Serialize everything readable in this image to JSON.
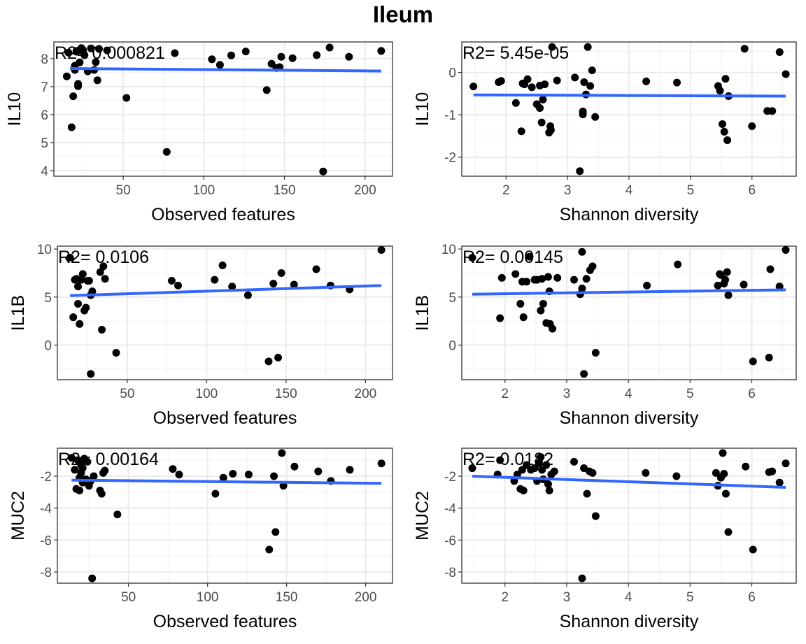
{
  "title": "Ileum",
  "chart_data": [
    {
      "type": "scatter",
      "id": "il10-observed",
      "xlabel": "Observed features",
      "ylabel": "IL10",
      "annotation": "R2= 0.000821",
      "xlim": [
        7,
        217
      ],
      "ylim": [
        3.8,
        8.6
      ],
      "xticks": [
        50,
        100,
        150,
        200
      ],
      "yticks": [
        4,
        5,
        6,
        7,
        8
      ],
      "x": [
        15,
        16,
        18,
        19,
        20,
        20,
        21,
        21,
        22,
        22,
        23,
        24,
        25,
        25,
        26,
        28,
        30,
        32,
        33,
        34,
        35,
        40,
        52,
        77,
        82,
        105,
        110,
        117,
        126,
        139,
        142,
        145,
        147,
        148,
        155,
        170,
        174,
        178,
        190,
        210
      ],
      "y": [
        7.37,
        8.22,
        5.55,
        6.66,
        7.6,
        7.75,
        8.25,
        8.28,
        7.02,
        7.1,
        7.87,
        8.38,
        8.32,
        8.26,
        8.13,
        7.55,
        8.37,
        7.6,
        7.88,
        7.23,
        8.35,
        8.3,
        6.6,
        4.67,
        8.2,
        7.98,
        7.78,
        8.12,
        8.26,
        6.88,
        7.82,
        7.67,
        7.7,
        8.07,
        8.02,
        8.13,
        3.97,
        8.4,
        8.07,
        8.28
      ],
      "fit": {
        "x": [
          17,
          210
        ],
        "y": [
          7.65,
          7.56
        ]
      }
    },
    {
      "type": "scatter",
      "id": "il10-shannon",
      "xlabel": "Shannon diversity",
      "ylabel": "IL10",
      "annotation": "R2= 5.45e-05",
      "xlim": [
        1.28,
        6.72
      ],
      "ylim": [
        -2.45,
        0.72
      ],
      "xticks": [
        2,
        3,
        4,
        5,
        6
      ],
      "yticks": [
        -2,
        -1,
        0
      ],
      "x": [
        1.47,
        1.88,
        1.92,
        2.16,
        2.25,
        2.27,
        2.3,
        2.35,
        2.42,
        2.5,
        2.55,
        2.58,
        2.6,
        2.63,
        2.7,
        2.72,
        2.73,
        2.75,
        2.83,
        3.12,
        3.2,
        3.25,
        3.27,
        3.3,
        3.33,
        3.37,
        3.4,
        3.45,
        4.28,
        4.78,
        5.45,
        5.48,
        5.52,
        5.55,
        5.57,
        5.6,
        5.62,
        6.0,
        6.25,
        6.33,
        6.45,
        6.55,
        3.25,
        2.55,
        5.88
      ],
      "y": [
        -0.33,
        -0.23,
        -0.2,
        -0.72,
        -1.39,
        -0.26,
        -0.28,
        -0.16,
        -0.35,
        -0.75,
        -0.31,
        -1.18,
        -0.64,
        -0.28,
        -1.42,
        -1.27,
        -1.36,
        0.6,
        -0.19,
        -0.12,
        -2.33,
        -0.99,
        -0.23,
        -0.52,
        0.6,
        -0.32,
        0.05,
        -1.05,
        -0.21,
        -0.24,
        -0.32,
        -0.43,
        -1.22,
        -1.4,
        -0.15,
        -1.6,
        -0.56,
        -1.27,
        -0.91,
        -0.91,
        0.48,
        -0.04,
        -0.92,
        -0.84,
        0.56
      ],
      "fit": {
        "x": [
          1.47,
          6.55
        ],
        "y": [
          -0.53,
          -0.56
        ]
      }
    },
    {
      "type": "scatter",
      "id": "il1b-observed",
      "xlabel": "Observed features",
      "ylabel": "IL1B",
      "annotation": "R2= 0.0106",
      "xlim": [
        6,
        217
      ],
      "ylim": [
        -3.6,
        10.3
      ],
      "xticks": [
        50,
        100,
        150,
        200
      ],
      "yticks": [
        0,
        5,
        10
      ],
      "x": [
        14,
        16,
        17,
        18,
        19,
        19,
        20,
        21,
        22,
        23,
        24,
        25,
        26,
        27,
        28,
        33,
        34,
        35,
        36,
        43,
        78,
        82,
        105,
        110,
        116,
        126,
        139,
        142,
        145,
        147,
        155,
        169,
        178,
        190,
        210,
        27
      ],
      "y": [
        9.1,
        2.9,
        6.8,
        6.9,
        4.3,
        6.1,
        2.2,
        6.8,
        7.4,
        3.6,
        3.9,
        6.7,
        6.7,
        5.2,
        5.6,
        7.6,
        1.6,
        8.2,
        6.9,
        -0.8,
        6.7,
        6.2,
        6.8,
        8.3,
        6.1,
        5.2,
        -1.7,
        6.4,
        -1.3,
        7.5,
        6.3,
        7.9,
        6.2,
        5.8,
        9.9,
        -3.0
      ],
      "fit": {
        "x": [
          14,
          210
        ],
        "y": [
          5.15,
          6.2
        ]
      }
    },
    {
      "type": "scatter",
      "id": "il1b-shannon",
      "xlabel": "Shannon diversity",
      "ylabel": "IL1B",
      "annotation": "R2= 0.00145",
      "xlim": [
        1.3,
        6.72
      ],
      "ylim": [
        -3.6,
        10.3
      ],
      "xticks": [
        2,
        3,
        4,
        5,
        6
      ],
      "yticks": [
        0,
        5,
        10
      ],
      "x": [
        1.47,
        1.92,
        1.95,
        2.17,
        2.25,
        2.28,
        2.3,
        2.35,
        2.4,
        2.48,
        2.52,
        2.58,
        2.6,
        2.62,
        2.67,
        2.7,
        2.72,
        2.73,
        2.77,
        2.85,
        3.12,
        3.22,
        3.25,
        3.28,
        3.32,
        3.38,
        3.42,
        3.47,
        4.3,
        4.8,
        5.45,
        5.48,
        5.5,
        5.55,
        5.57,
        5.6,
        5.62,
        5.87,
        6.02,
        6.28,
        6.3,
        6.45,
        6.55,
        3.25
      ],
      "y": [
        9.1,
        2.8,
        7.0,
        7.4,
        4.3,
        6.6,
        2.9,
        6.6,
        9.2,
        6.8,
        6.8,
        3.6,
        6.9,
        4.3,
        2.3,
        7.1,
        5.6,
        2.2,
        1.7,
        7.0,
        6.8,
        5.3,
        9.7,
        -3.0,
        6.9,
        7.8,
        8.2,
        -0.8,
        6.2,
        8.4,
        6.2,
        7.4,
        7.3,
        6.4,
        6.8,
        7.6,
        5.2,
        6.3,
        -1.7,
        -1.3,
        7.9,
        6.1,
        9.9,
        5.9
      ],
      "fit": {
        "x": [
          1.47,
          6.55
        ],
        "y": [
          5.3,
          5.75
        ]
      }
    },
    {
      "type": "scatter",
      "id": "muc2-observed",
      "xlabel": "Observed features",
      "ylabel": "MUC2",
      "annotation": "R2= 0.00164",
      "xlim": [
        5,
        217
      ],
      "ylim": [
        -8.7,
        -0.25
      ],
      "xticks": [
        50,
        100,
        150,
        200
      ],
      "yticks": [
        -8,
        -6,
        -4,
        -2
      ],
      "x": [
        14,
        16,
        17,
        18,
        19,
        19,
        20,
        20,
        21,
        21,
        22,
        23,
        24,
        25,
        26,
        27,
        28,
        32,
        33,
        34,
        35,
        43,
        78,
        82,
        105,
        110,
        116,
        126,
        139,
        142,
        143,
        147,
        148,
        155,
        170,
        178,
        190,
        210
      ],
      "y": [
        -0.85,
        -1.6,
        -2.8,
        -1.0,
        -2.1,
        -2.9,
        -1.8,
        -1.3,
        -1.5,
        -2.4,
        -0.9,
        -2.2,
        -1.1,
        -2.6,
        -2.3,
        -8.4,
        -2.0,
        -2.9,
        -3.1,
        -1.8,
        -1.65,
        -4.4,
        -1.55,
        -1.9,
        -3.1,
        -2.1,
        -1.85,
        -1.9,
        -6.6,
        -2.0,
        -5.5,
        -0.55,
        -2.6,
        -1.4,
        -1.7,
        -2.3,
        -1.6,
        -1.2
      ],
      "fit": {
        "x": [
          14,
          210
        ],
        "y": [
          -2.25,
          -2.45
        ]
      }
    },
    {
      "type": "scatter",
      "id": "muc2-shannon",
      "xlabel": "Shannon diversity",
      "ylabel": "MUC2",
      "annotation": "R2= 0.0182",
      "xlim": [
        1.3,
        6.72
      ],
      "ylim": [
        -8.7,
        -0.25
      ],
      "xticks": [
        2,
        3,
        4,
        5,
        6
      ],
      "yticks": [
        -8,
        -6,
        -4,
        -2
      ],
      "x": [
        1.47,
        1.88,
        1.92,
        2.15,
        2.2,
        2.25,
        2.28,
        2.3,
        2.35,
        2.42,
        2.48,
        2.52,
        2.55,
        2.58,
        2.6,
        2.62,
        2.67,
        2.7,
        2.72,
        2.75,
        2.8,
        3.12,
        3.25,
        3.28,
        3.33,
        3.37,
        3.42,
        3.47,
        4.28,
        4.78,
        5.42,
        5.45,
        5.5,
        5.53,
        5.55,
        5.58,
        5.62,
        5.9,
        6.02,
        6.28,
        6.33,
        6.45,
        6.55
      ],
      "y": [
        -1.5,
        -1.9,
        -1.0,
        -2.3,
        -1.9,
        -2.8,
        -1.6,
        -2.9,
        -1.3,
        -1.6,
        -1.5,
        -2.3,
        -1.2,
        -0.8,
        -1.6,
        -2.2,
        -1.3,
        -2.5,
        -2.9,
        -1.9,
        -1.7,
        -1.1,
        -8.4,
        -1.5,
        -3.1,
        -1.7,
        -1.8,
        -4.5,
        -1.8,
        -2.0,
        -1.8,
        -2.6,
        -2.1,
        -0.55,
        -1.85,
        -3.1,
        -5.5,
        -1.4,
        -6.6,
        -1.75,
        -1.7,
        -2.4,
        -1.2
      ],
      "fit": {
        "x": [
          1.47,
          6.55
        ],
        "y": [
          -2.0,
          -2.7
        ]
      }
    }
  ]
}
